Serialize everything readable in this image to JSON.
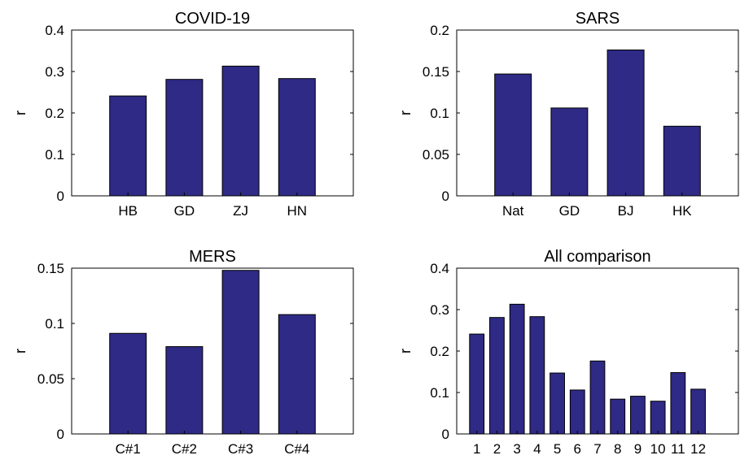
{
  "chart_data": [
    {
      "type": "bar",
      "title": "COVID-19",
      "ylabel": "r",
      "xlabel": "",
      "categories": [
        "HB",
        "GD",
        "ZJ",
        "HN"
      ],
      "values": [
        0.241,
        0.281,
        0.313,
        0.283
      ],
      "ylim": [
        0,
        0.4
      ],
      "yticks": [
        "0",
        "0.1",
        "0.2",
        "0.3",
        "0.4"
      ],
      "bar_color": "#2e2a85",
      "grid": false
    },
    {
      "type": "bar",
      "title": "SARS",
      "ylabel": "r",
      "xlabel": "",
      "categories": [
        "Nat",
        "GD",
        "BJ",
        "HK"
      ],
      "values": [
        0.147,
        0.106,
        0.176,
        0.084
      ],
      "ylim": [
        0,
        0.2
      ],
      "yticks": [
        "0",
        "0.05",
        "0.1",
        "0.15",
        "0.2"
      ],
      "bar_color": "#2e2a85",
      "grid": false
    },
    {
      "type": "bar",
      "title": "MERS",
      "ylabel": "r",
      "xlabel": "",
      "categories": [
        "C#1",
        "C#2",
        "C#3",
        "C#4"
      ],
      "values": [
        0.091,
        0.079,
        0.148,
        0.108
      ],
      "ylim": [
        0,
        0.15
      ],
      "yticks": [
        "0",
        "0.05",
        "0.1",
        "0.15"
      ],
      "bar_color": "#2e2a85",
      "grid": false
    },
    {
      "type": "bar",
      "title": "All comparison",
      "ylabel": "r",
      "xlabel": "",
      "categories": [
        "1",
        "2",
        "3",
        "4",
        "5",
        "6",
        "7",
        "8",
        "9",
        "10",
        "11",
        "12"
      ],
      "values": [
        0.241,
        0.281,
        0.313,
        0.283,
        0.147,
        0.106,
        0.176,
        0.084,
        0.091,
        0.079,
        0.148,
        0.108
      ],
      "ylim": [
        0,
        0.4
      ],
      "yticks": [
        "0",
        "0.1",
        "0.2",
        "0.3",
        "0.4"
      ],
      "bar_color": "#2e2a85",
      "grid": false
    }
  ]
}
